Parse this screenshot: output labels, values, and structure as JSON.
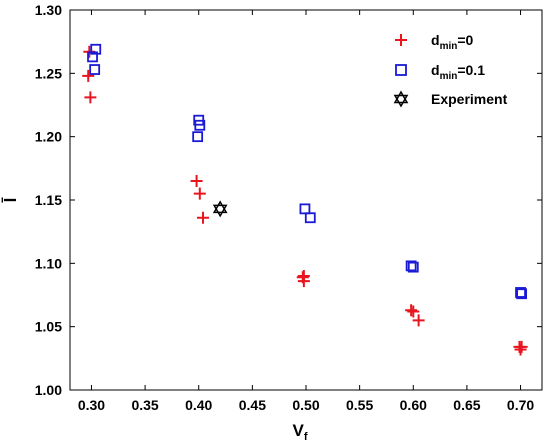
{
  "chart_data": {
    "type": "scatter",
    "xlabel": "V",
    "xlabel_sub": "f",
    "ylabel": "l̄",
    "xlim": [
      0.28,
      0.72
    ],
    "ylim": [
      1.0,
      1.3
    ],
    "xticks": [
      "0.30",
      "0.35",
      "0.40",
      "0.45",
      "0.50",
      "0.55",
      "0.60",
      "0.65",
      "0.70"
    ],
    "xtick_values": [
      0.3,
      0.35,
      0.4,
      0.45,
      0.5,
      0.55,
      0.6,
      0.65,
      0.7
    ],
    "yticks": [
      "1.00",
      "1.05",
      "1.10",
      "1.15",
      "1.20",
      "1.25",
      "1.30"
    ],
    "ytick_values": [
      1.0,
      1.05,
      1.1,
      1.15,
      1.2,
      1.25,
      1.3
    ],
    "grid": false,
    "legend_position": "top-right",
    "series": [
      {
        "name": "d",
        "name_sub": "min",
        "name_suffix": "=0",
        "marker": "plus",
        "color": "#e8141e",
        "points": [
          [
            0.298,
            1.267
          ],
          [
            0.297,
            1.248
          ],
          [
            0.299,
            1.231
          ],
          [
            0.398,
            1.165
          ],
          [
            0.401,
            1.155
          ],
          [
            0.404,
            1.136
          ],
          [
            0.498,
            1.09
          ],
          [
            0.497,
            1.089
          ],
          [
            0.498,
            1.086
          ],
          [
            0.598,
            1.063
          ],
          [
            0.6,
            1.062
          ],
          [
            0.605,
            1.055
          ],
          [
            0.699,
            1.034
          ],
          [
            0.701,
            1.034
          ],
          [
            0.7,
            1.032
          ]
        ]
      },
      {
        "name": "d",
        "name_sub": "min",
        "name_suffix": "=0.1",
        "marker": "square",
        "color": "#1a1ad6",
        "points": [
          [
            0.304,
            1.269
          ],
          [
            0.301,
            1.263
          ],
          [
            0.303,
            1.253
          ],
          [
            0.4,
            1.213
          ],
          [
            0.401,
            1.209
          ],
          [
            0.399,
            1.2
          ],
          [
            0.499,
            1.143
          ],
          [
            0.504,
            1.136
          ],
          [
            0.598,
            1.098
          ],
          [
            0.6,
            1.097
          ],
          [
            0.7,
            1.077
          ],
          [
            0.701,
            1.076
          ]
        ]
      },
      {
        "name": "Experiment",
        "marker": "hexagram",
        "color": "#000000",
        "points": [
          [
            0.42,
            1.143
          ]
        ]
      }
    ]
  }
}
